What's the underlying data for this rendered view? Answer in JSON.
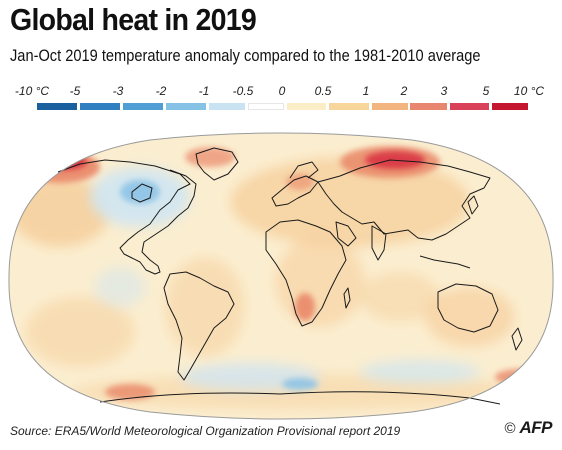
{
  "header": {
    "title": "Global heat in 2019",
    "subtitle": "Jan-Oct 2019 temperature anomaly compared to the 1981-2010 average"
  },
  "legend": {
    "labels": [
      "-10 °C",
      "-5",
      "-3",
      "-2",
      "-1",
      "-0.5",
      "0",
      "0.5",
      "1",
      "2",
      "3",
      "5",
      "10 °C"
    ],
    "colors": [
      "#1a5f9e",
      "#2f7fc1",
      "#4f9fd6",
      "#86c1e6",
      "#c9e3f3",
      "#ffffff",
      "#fbeec6",
      "#f8d59a",
      "#f2b57f",
      "#e8866f",
      "#d9405a",
      "#c4162f"
    ]
  },
  "map": {
    "colors": {
      "ocean_base": "#fbeed0",
      "neutral": "#fdf5e0",
      "warm": "#f6cf9c",
      "hot": "#e98768",
      "very_hot": "#d7303f",
      "cool": "#cfe5f2",
      "cold": "#8ec3e6",
      "coast": "#1a1a1a"
    }
  },
  "footer": {
    "source": "Source: ERA5/World Meteorological Organization Provisional report 2019",
    "copyright": "©",
    "logo": "AFP"
  }
}
